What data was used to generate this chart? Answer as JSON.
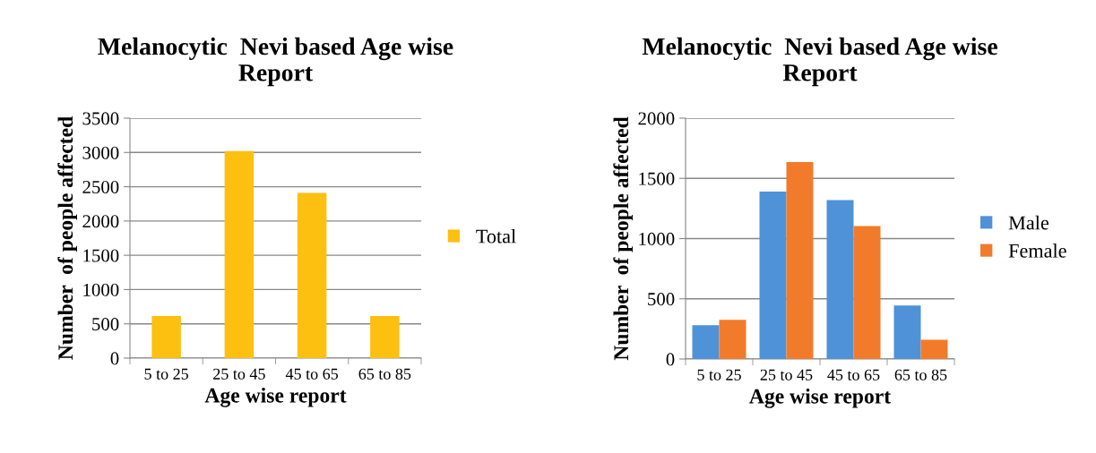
{
  "chart_data": [
    {
      "type": "bar",
      "title": "Melanocytic  Nevi based Age wise Report",
      "xlabel": "Age wise report",
      "ylabel": "Number  of people affected",
      "categories": [
        "5 to 25",
        "25 to 45",
        "45 to 65",
        "65 to 85"
      ],
      "series": [
        {
          "name": "Total",
          "color": "#fdbf10",
          "values": [
            615,
            3020,
            2410,
            615
          ]
        }
      ],
      "ylim": [
        0,
        3500
      ],
      "yticks": [
        0,
        500,
        1000,
        1500,
        2000,
        2500,
        3000,
        3500
      ],
      "grid": "y",
      "legend": "right"
    },
    {
      "type": "bar",
      "title": "Melanocytic  Nevi based Age wise Report",
      "xlabel": "Age wise report",
      "ylabel": "Number  of people affected",
      "categories": [
        "5 to 25",
        "25 to 45",
        "45 to 65",
        "65 to 85"
      ],
      "series": [
        {
          "name": "Male",
          "color": "#4f92d8",
          "values": [
            280,
            1390,
            1320,
            445
          ]
        },
        {
          "name": "Female",
          "color": "#f27b2b",
          "values": [
            325,
            1635,
            1105,
            160
          ]
        }
      ],
      "ylim": [
        0,
        2000
      ],
      "yticks": [
        0,
        500,
        1000,
        1500,
        2000
      ],
      "grid": "y",
      "legend": "right"
    }
  ]
}
